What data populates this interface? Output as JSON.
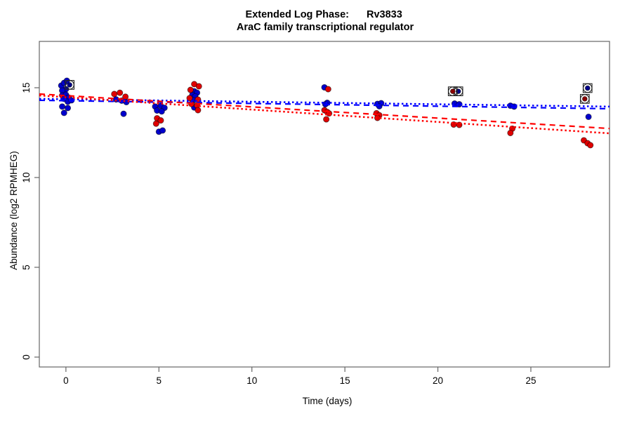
{
  "chart_data": {
    "type": "scatter",
    "title": {
      "phase_label": "Extended Log Phase:",
      "gene_id": "Rv3833"
    },
    "subtitle": "AraC family transcriptional regulator",
    "xlabel": "Time  (days)",
    "ylabel": "Abundance  (log2 RPMHEG)",
    "xlim": [
      -1.43,
      29.23
    ],
    "ylim": [
      -0.55,
      17.58
    ],
    "x_ticks": [
      0,
      5,
      10,
      15,
      20,
      25
    ],
    "y_ticks": [
      0,
      5,
      10,
      15
    ],
    "grid": false,
    "legend": "none",
    "frame_color": "#666666",
    "series": [
      {
        "name": "blue-points",
        "color": "#0000cd",
        "marker": "dot",
        "points": [
          [
            -0.25,
            15.12
          ],
          [
            -0.1,
            15.27
          ],
          [
            0.05,
            15.39
          ],
          [
            0.0,
            14.92
          ],
          [
            -0.2,
            14.84
          ],
          [
            -0.2,
            14.57
          ],
          [
            0.0,
            14.61
          ],
          [
            0.15,
            14.45
          ],
          [
            -0.1,
            14.38
          ],
          [
            0.1,
            14.22
          ],
          [
            0.3,
            14.3
          ],
          [
            -0.2,
            13.95
          ],
          [
            0.1,
            13.87
          ],
          [
            -0.1,
            13.6
          ],
          [
            2.7,
            14.35
          ],
          [
            3.0,
            14.28
          ],
          [
            3.25,
            14.2
          ],
          [
            3.1,
            13.55
          ],
          [
            4.8,
            13.95
          ],
          [
            5.1,
            13.99
          ],
          [
            5.3,
            13.88
          ],
          [
            4.9,
            13.73
          ],
          [
            5.15,
            13.68
          ],
          [
            5.0,
            12.55
          ],
          [
            5.2,
            12.62
          ],
          [
            6.9,
            14.8
          ],
          [
            7.05,
            14.72
          ],
          [
            6.8,
            14.6
          ],
          [
            6.95,
            14.52
          ],
          [
            6.85,
            14.3
          ],
          [
            6.9,
            13.9
          ],
          [
            13.9,
            15.02
          ],
          [
            14.05,
            14.16
          ],
          [
            13.95,
            14.08
          ],
          [
            16.75,
            14.1
          ],
          [
            16.95,
            14.14
          ],
          [
            16.85,
            13.97
          ],
          [
            20.9,
            14.12
          ],
          [
            21.15,
            14.08
          ],
          [
            23.9,
            14.0
          ],
          [
            24.1,
            13.95
          ],
          [
            28.1,
            13.38
          ]
        ]
      },
      {
        "name": "red-points",
        "color": "#e00000",
        "marker": "dot",
        "points": [
          [
            2.6,
            14.65
          ],
          [
            2.9,
            14.72
          ],
          [
            3.2,
            14.5
          ],
          [
            4.9,
            13.3
          ],
          [
            5.1,
            13.18
          ],
          [
            4.85,
            13.0
          ],
          [
            6.9,
            15.2
          ],
          [
            7.15,
            15.08
          ],
          [
            6.7,
            14.88
          ],
          [
            6.65,
            14.42
          ],
          [
            7.1,
            14.34
          ],
          [
            6.75,
            14.1
          ],
          [
            7.05,
            14.02
          ],
          [
            7.1,
            13.75
          ],
          [
            14.1,
            14.92
          ],
          [
            13.9,
            13.75
          ],
          [
            14.05,
            13.65
          ],
          [
            14.15,
            13.57
          ],
          [
            14.0,
            13.24
          ],
          [
            16.7,
            13.58
          ],
          [
            16.85,
            13.47
          ],
          [
            16.75,
            13.32
          ],
          [
            20.85,
            12.95
          ],
          [
            21.15,
            12.93
          ],
          [
            24.0,
            12.72
          ],
          [
            23.9,
            12.48
          ],
          [
            27.85,
            12.07
          ],
          [
            28.05,
            11.91
          ],
          [
            28.2,
            11.8
          ]
        ]
      },
      {
        "name": "flagged-blue-points",
        "color": "#00008b",
        "marker": "circle-square",
        "points": [
          [
            0.2,
            15.16
          ],
          [
            21.1,
            14.8
          ],
          [
            28.05,
            14.98
          ]
        ]
      },
      {
        "name": "flagged-red-points",
        "color": "#8b0000",
        "marker": "circle-square",
        "points": [
          [
            20.8,
            14.8
          ],
          [
            27.9,
            14.38
          ]
        ]
      }
    ],
    "trend_lines": [
      {
        "name": "blue-dotted-fit",
        "color": "#0000ff",
        "style": "dotted",
        "x": [
          -1.43,
          29.23
        ],
        "y": [
          14.38,
          13.95
        ]
      },
      {
        "name": "blue-dashed-fit",
        "color": "#0000ff",
        "style": "dashed",
        "x": [
          -1.43,
          29.23
        ],
        "y": [
          14.3,
          13.83
        ]
      },
      {
        "name": "red-dashed-fit",
        "color": "#ff0000",
        "style": "dashed",
        "x": [
          -1.43,
          29.23
        ],
        "y": [
          14.65,
          12.73
        ]
      },
      {
        "name": "red-dotted-fit",
        "color": "#ff0000",
        "style": "dotted",
        "x": [
          -1.43,
          29.23
        ],
        "y": [
          14.57,
          12.46
        ]
      }
    ]
  }
}
